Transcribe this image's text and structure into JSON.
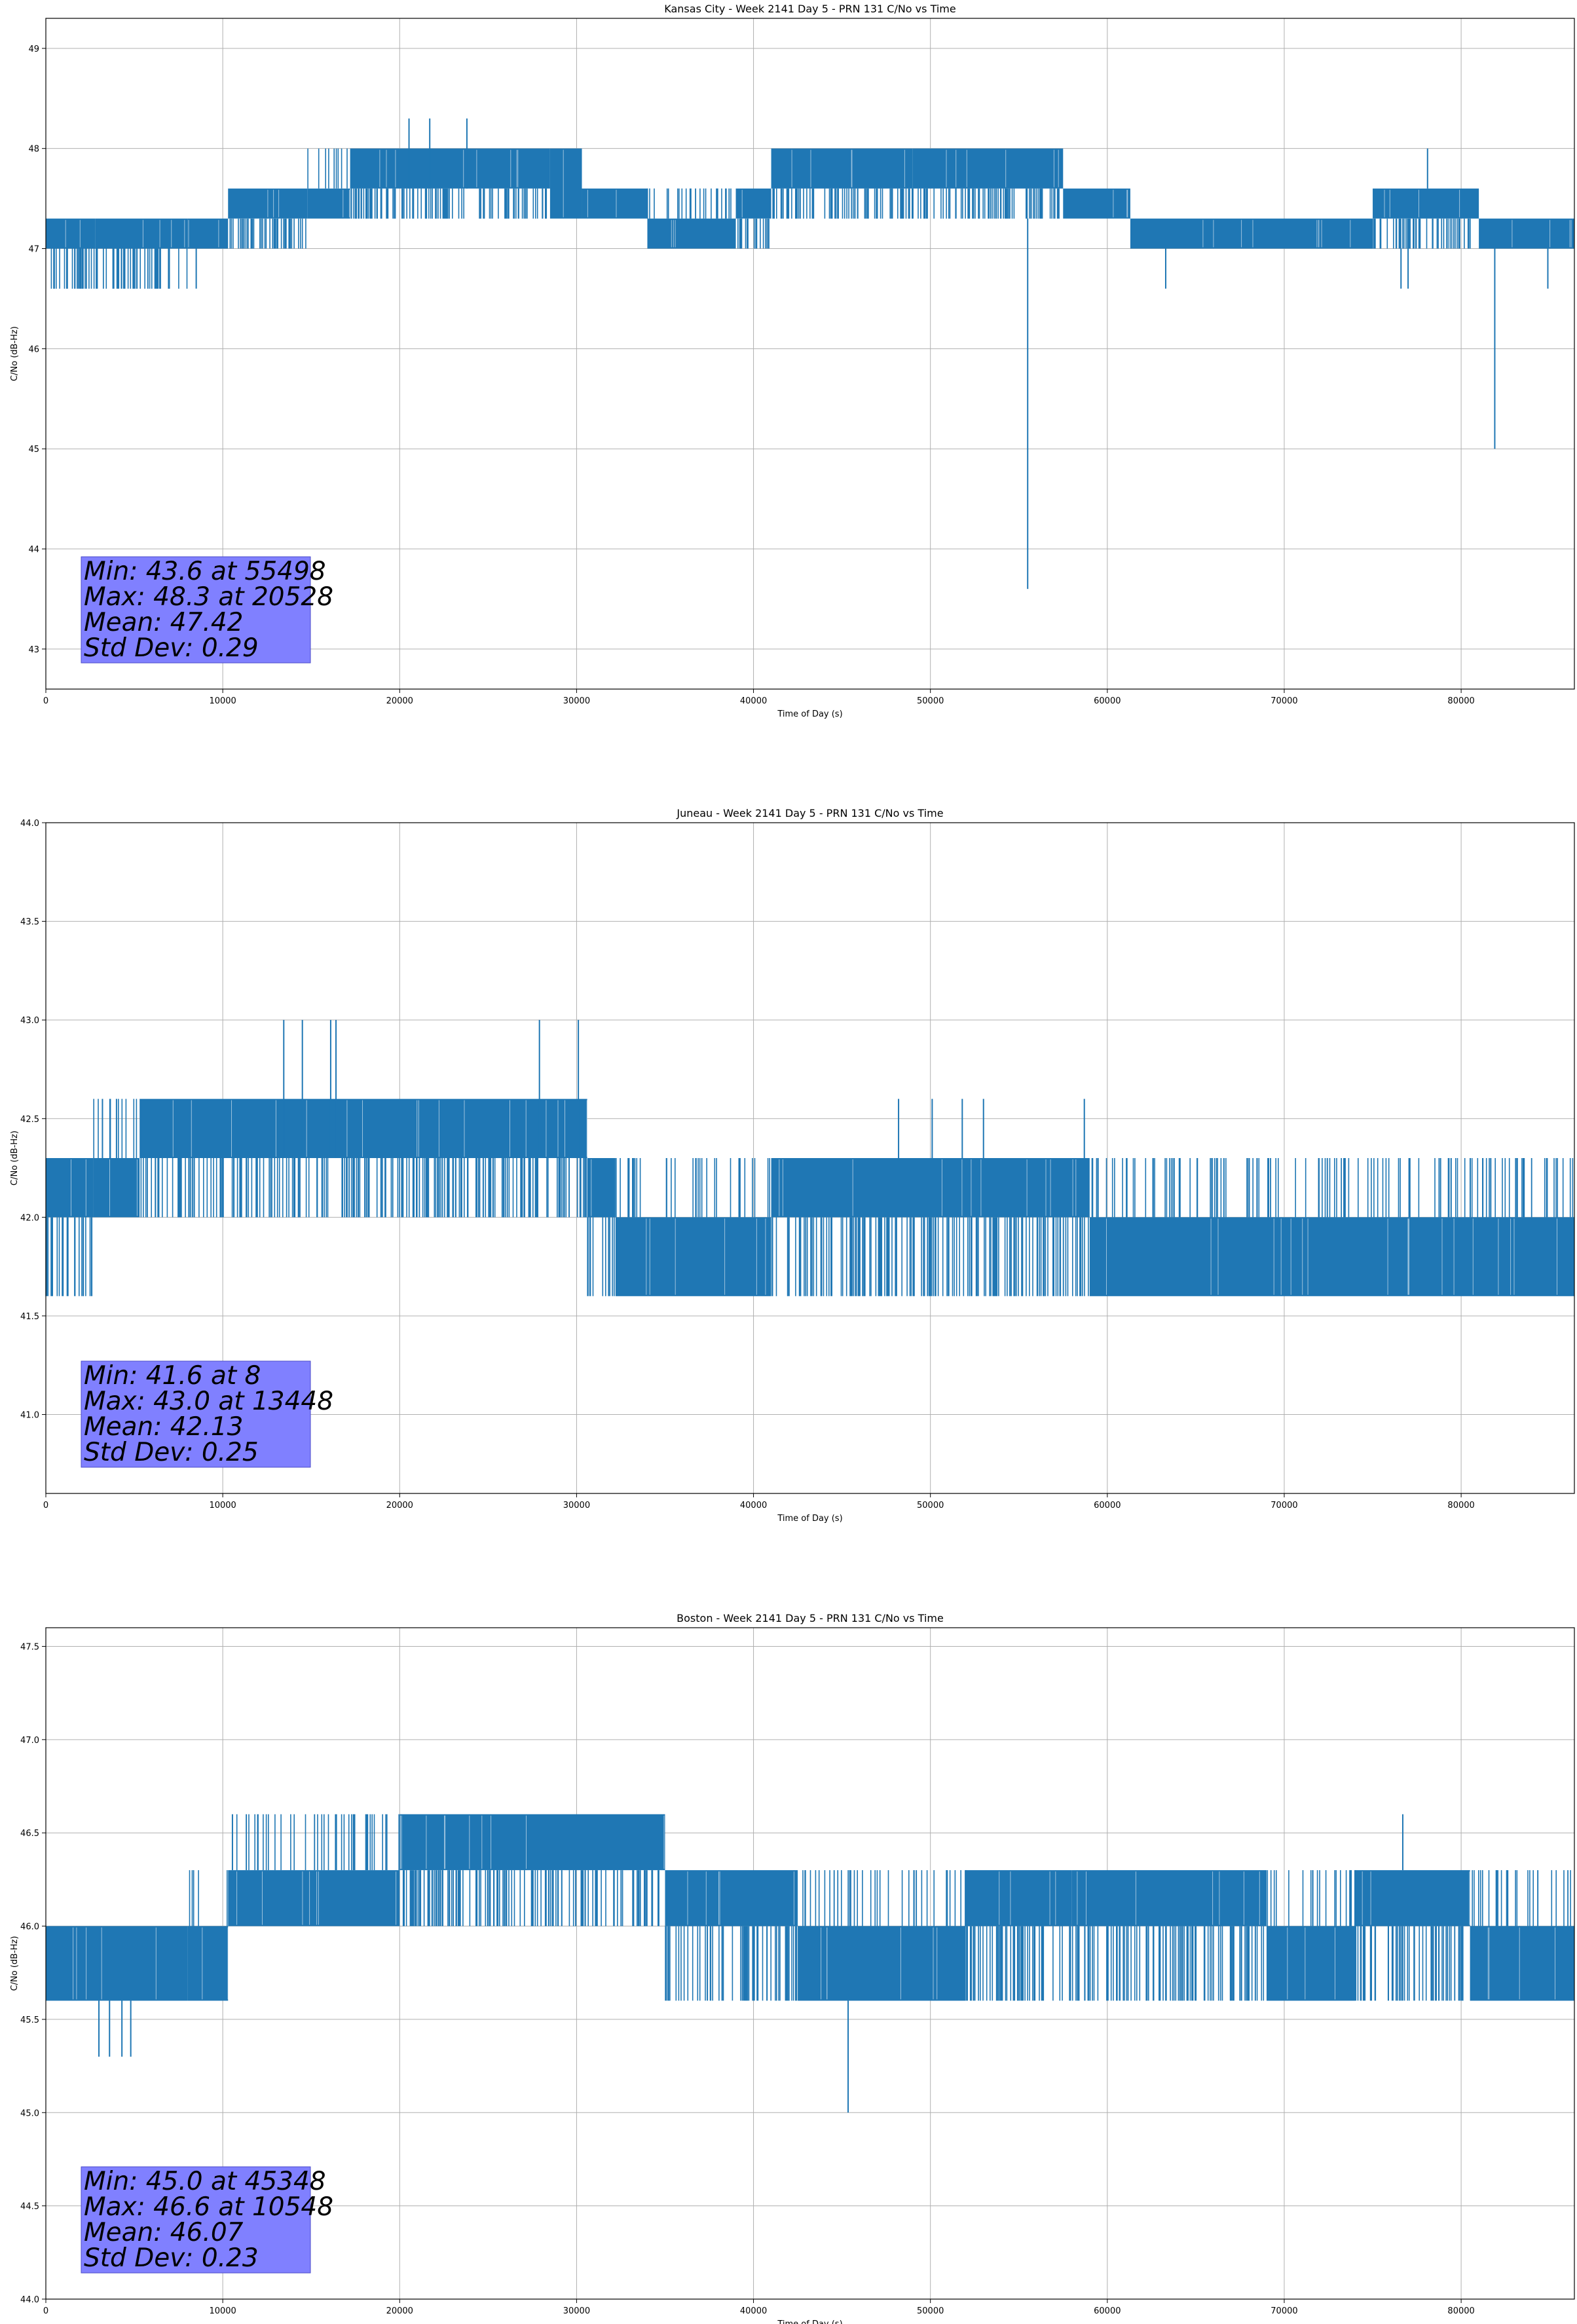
{
  "chart_data": [
    {
      "type": "line",
      "title": "Kansas City - Week 2141 Day 5 - PRN 131 C/No vs Time",
      "xlabel": "Time of Day (s)",
      "ylabel": "C/No (dB-Hz)",
      "xlim": [
        0,
        86400
      ],
      "ylim": [
        42.6,
        49.3
      ],
      "xticks": [
        0,
        10000,
        20000,
        30000,
        40000,
        50000,
        60000,
        70000,
        80000
      ],
      "yticks": [
        43,
        44,
        45,
        46,
        47,
        48,
        49
      ],
      "ytick_decimals": 0,
      "grid": true,
      "color": "#1f77b4",
      "stats": [
        "Min: 43.6 at 55498",
        "Max: 48.3 at 20528",
        "Mean: 47.42",
        "Std Dev: 0.29"
      ],
      "segments": [
        {
          "x": [
            0,
            2800
          ],
          "lo": 46.6,
          "hi": 47.3,
          "base": [
            47.0,
            47.3
          ]
        },
        {
          "x": [
            2800,
            8000
          ],
          "lo": 46.6,
          "hi": 47.3,
          "base": [
            47.0,
            47.3
          ]
        },
        {
          "x": [
            8000,
            10300
          ],
          "lo": 47.0,
          "hi": 47.3,
          "base": [
            47.0,
            47.3
          ]
        },
        {
          "x": [
            10300,
            14800
          ],
          "lo": 47.0,
          "hi": 47.6,
          "base": [
            47.3,
            47.6
          ]
        },
        {
          "x": [
            14800,
            17200
          ],
          "lo": 47.3,
          "hi": 48.0,
          "base": [
            47.3,
            47.6
          ]
        },
        {
          "x": [
            17200,
            28500
          ],
          "lo": 47.3,
          "hi": 48.0,
          "base": [
            47.6,
            48.0
          ]
        },
        {
          "x": [
            28500,
            30300
          ],
          "lo": 47.3,
          "hi": 48.0,
          "base": [
            47.3,
            48.0
          ]
        },
        {
          "x": [
            30300,
            34000
          ],
          "lo": 47.3,
          "hi": 47.6,
          "base": [
            47.3,
            47.6
          ]
        },
        {
          "x": [
            34000,
            39000
          ],
          "lo": 47.0,
          "hi": 47.6,
          "base": [
            47.0,
            47.3
          ]
        },
        {
          "x": [
            39000,
            41000
          ],
          "lo": 47.0,
          "hi": 47.6,
          "base": [
            47.3,
            47.6
          ]
        },
        {
          "x": [
            41000,
            49000
          ],
          "lo": 47.3,
          "hi": 48.0,
          "base": [
            47.6,
            48.0
          ]
        },
        {
          "x": [
            49000,
            57500
          ],
          "lo": 47.3,
          "hi": 48.0,
          "base": [
            47.6,
            48.0
          ]
        },
        {
          "x": [
            57500,
            61300
          ],
          "lo": 47.3,
          "hi": 47.6,
          "base": [
            47.3,
            47.6
          ]
        },
        {
          "x": [
            61300,
            75000
          ],
          "lo": 47.0,
          "hi": 47.3,
          "base": [
            47.0,
            47.3
          ]
        },
        {
          "x": [
            75000,
            81000
          ],
          "lo": 47.0,
          "hi": 47.6,
          "base": [
            47.3,
            47.6
          ]
        },
        {
          "x": [
            81000,
            86400
          ],
          "lo": 47.0,
          "hi": 47.3,
          "base": [
            47.0,
            47.3
          ]
        }
      ],
      "spikes": [
        [
          20528,
          47.6,
          48.3
        ],
        [
          21700,
          47.6,
          48.3
        ],
        [
          23800,
          47.6,
          48.3
        ],
        [
          55498,
          47.3,
          43.6
        ],
        [
          81900,
          47.0,
          45.0
        ],
        [
          78100,
          47.6,
          48.0
        ],
        [
          63300,
          47.0,
          46.6
        ],
        [
          76600,
          47.0,
          46.6
        ],
        [
          77000,
          47.0,
          46.6
        ],
        [
          84900,
          47.0,
          46.6
        ],
        [
          8500,
          47.0,
          46.6
        ]
      ]
    },
    {
      "type": "line",
      "title": "Juneau - Week 2141 Day 5 - PRN 131 C/No vs Time",
      "xlabel": "Time of Day (s)",
      "ylabel": "C/No (dB-Hz)",
      "xlim": [
        0,
        86400
      ],
      "ylim": [
        40.6,
        44.0
      ],
      "xticks": [
        0,
        10000,
        20000,
        30000,
        40000,
        50000,
        60000,
        70000,
        80000
      ],
      "yticks": [
        41.0,
        41.5,
        42.0,
        42.5,
        43.0,
        43.5,
        44.0
      ],
      "ytick_decimals": 1,
      "grid": true,
      "color": "#1f77b4",
      "stats": [
        "Min: 41.6 at 8",
        "Max: 43.0 at 13448",
        "Mean: 42.13",
        "Std Dev: 0.25"
      ],
      "segments": [
        {
          "x": [
            0,
            2700
          ],
          "lo": 41.6,
          "hi": 42.3,
          "base": [
            42.0,
            42.3
          ]
        },
        {
          "x": [
            2700,
            5300
          ],
          "lo": 42.0,
          "hi": 42.6,
          "base": [
            42.0,
            42.3
          ]
        },
        {
          "x": [
            5300,
            30600
          ],
          "lo": 42.0,
          "hi": 42.6,
          "base": [
            42.3,
            42.6
          ]
        },
        {
          "x": [
            30600,
            32200
          ],
          "lo": 41.6,
          "hi": 42.3,
          "base": [
            42.0,
            42.3
          ]
        },
        {
          "x": [
            32200,
            41000
          ],
          "lo": 41.6,
          "hi": 42.3,
          "base": [
            41.6,
            42.0
          ]
        },
        {
          "x": [
            41000,
            59000
          ],
          "lo": 41.6,
          "hi": 42.3,
          "base": [
            42.0,
            42.3
          ]
        },
        {
          "x": [
            59000,
            86400
          ],
          "lo": 41.6,
          "hi": 42.3,
          "base": [
            41.6,
            42.0
          ]
        }
      ],
      "spikes": [
        [
          13448,
          42.3,
          43.0
        ],
        [
          14500,
          42.3,
          43.0
        ],
        [
          16100,
          42.3,
          43.0
        ],
        [
          16400,
          42.3,
          43.0
        ],
        [
          27900,
          42.3,
          43.0
        ],
        [
          30100,
          42.3,
          43.0
        ],
        [
          3200,
          42.3,
          42.6
        ],
        [
          48200,
          42.3,
          42.6
        ],
        [
          50100,
          42.3,
          42.6
        ],
        [
          51800,
          42.3,
          42.6
        ],
        [
          53000,
          42.3,
          42.6
        ],
        [
          58700,
          42.3,
          42.6
        ]
      ]
    },
    {
      "type": "line",
      "title": "Boston - Week 2141 Day 5 - PRN 131 C/No vs Time",
      "xlabel": "Time of Day (s)",
      "ylabel": "C/No (dB-Hz)",
      "xlim": [
        0,
        86400
      ],
      "ylim": [
        44.0,
        47.6
      ],
      "xticks": [
        0,
        10000,
        20000,
        30000,
        40000,
        50000,
        60000,
        70000,
        80000
      ],
      "yticks": [
        44.0,
        44.5,
        45.0,
        45.5,
        46.0,
        46.5,
        47.0,
        47.5
      ],
      "ytick_decimals": 1,
      "grid": true,
      "color": "#1f77b4",
      "stats": [
        "Min: 45.0 at 45348",
        "Max: 46.6 at 10548",
        "Mean: 46.07",
        "Std Dev: 0.23"
      ],
      "segments": [
        {
          "x": [
            0,
            8000
          ],
          "lo": 45.6,
          "hi": 46.0,
          "base": [
            45.6,
            46.0
          ]
        },
        {
          "x": [
            8000,
            10300
          ],
          "lo": 45.6,
          "hi": 46.3,
          "base": [
            45.6,
            46.0
          ]
        },
        {
          "x": [
            10300,
            20000
          ],
          "lo": 46.0,
          "hi": 46.6,
          "base": [
            46.0,
            46.3
          ]
        },
        {
          "x": [
            20000,
            35000
          ],
          "lo": 46.0,
          "hi": 46.6,
          "base": [
            46.3,
            46.6
          ]
        },
        {
          "x": [
            35000,
            42500
          ],
          "lo": 45.6,
          "hi": 46.3,
          "base": [
            46.0,
            46.3
          ]
        },
        {
          "x": [
            42500,
            52000
          ],
          "lo": 45.6,
          "hi": 46.3,
          "base": [
            45.6,
            46.0
          ]
        },
        {
          "x": [
            52000,
            58000
          ],
          "lo": 45.6,
          "hi": 46.3,
          "base": [
            46.0,
            46.3
          ]
        },
        {
          "x": [
            58000,
            69000
          ],
          "lo": 45.6,
          "hi": 46.3,
          "base": [
            46.0,
            46.3
          ]
        },
        {
          "x": [
            69000,
            74000
          ],
          "lo": 45.6,
          "hi": 46.3,
          "base": [
            45.6,
            46.0
          ]
        },
        {
          "x": [
            74000,
            80500
          ],
          "lo": 45.6,
          "hi": 46.3,
          "base": [
            46.0,
            46.3
          ]
        },
        {
          "x": [
            80500,
            86400
          ],
          "lo": 45.6,
          "hi": 46.3,
          "base": [
            45.6,
            46.0
          ]
        }
      ],
      "spikes": [
        [
          45348,
          45.6,
          45.0
        ],
        [
          10548,
          46.3,
          46.6
        ],
        [
          76700,
          46.3,
          46.6
        ],
        [
          3000,
          45.6,
          45.3
        ],
        [
          3600,
          45.6,
          45.3
        ],
        [
          4300,
          45.6,
          45.3
        ],
        [
          4800,
          45.6,
          45.3
        ]
      ]
    }
  ]
}
